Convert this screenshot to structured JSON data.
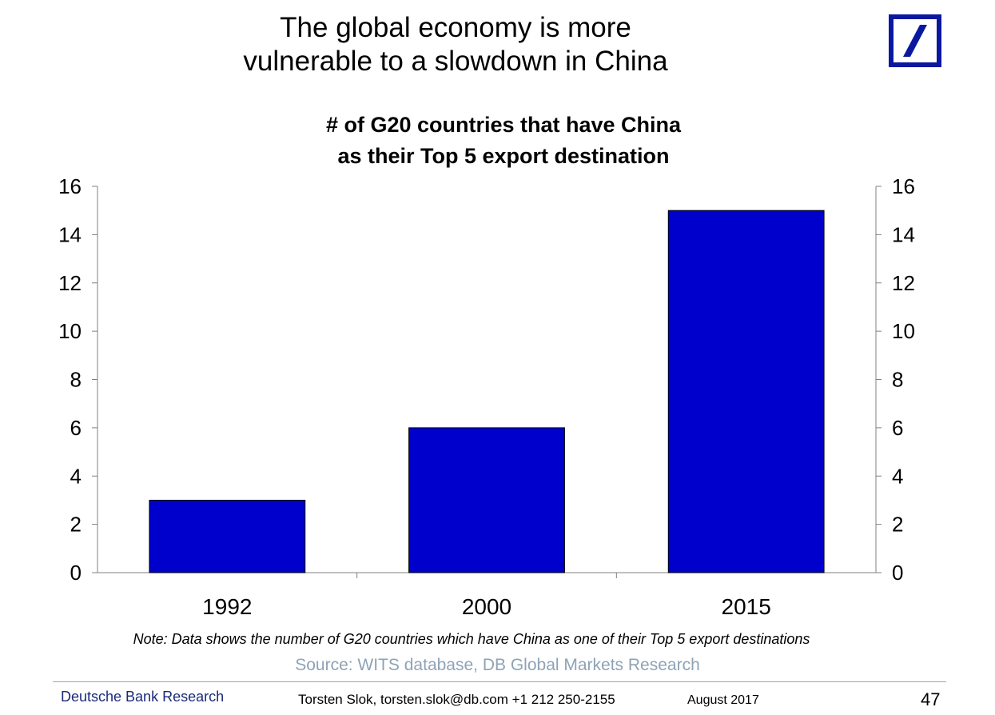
{
  "slide": {
    "title_line1": "The global economy is more",
    "title_line2": "vulnerable to a slowdown in China"
  },
  "logo": {
    "icon": "deutsche-bank-slash-logo",
    "color": "#0a18a0"
  },
  "chart_data": {
    "type": "bar",
    "title_line1": "# of G20 countries that have China",
    "title_line2": "as their Top 5 export destination",
    "categories": [
      "1992",
      "2000",
      "2015"
    ],
    "values": [
      3,
      6,
      15
    ],
    "ylim": [
      0,
      16
    ],
    "yticks": [
      0,
      2,
      4,
      6,
      8,
      10,
      12,
      14,
      16
    ],
    "y_axis_sides": "left and right",
    "bar_color": "#0000cc",
    "grid": false,
    "legend": "none",
    "xlabel": "",
    "ylabel": ""
  },
  "note": "Note: Data shows the number of G20 countries which have China as one of their Top 5 export destinations",
  "source": "Source: WITS database, DB Global Markets Research",
  "footer": {
    "brand": "Deutsche Bank Research",
    "author": "Torsten Slok, torsten.slok@db.com  +1 212 250-2155",
    "date": "August  2017",
    "page": "47"
  }
}
